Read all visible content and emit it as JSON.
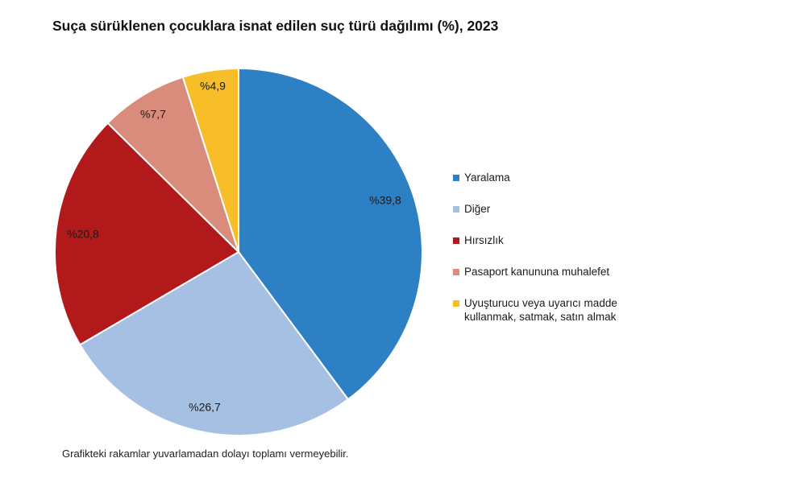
{
  "chart_data": {
    "type": "pie",
    "title": "Suça sürüklenen çocuklara isnat edilen suç türü dağılımı (%), 2023",
    "slices": [
      {
        "name": "Yaralama",
        "value": 39.8,
        "label": "%39,8",
        "color": "#2E80C4"
      },
      {
        "name": "Diğer",
        "value": 26.7,
        "label": "%26,7",
        "color": "#A6C0E4"
      },
      {
        "name": "Hırsızlık",
        "value": 20.8,
        "label": "%20,8",
        "color": "#B2191B"
      },
      {
        "name": "Pasaport kanununa muhalefet",
        "value": 7.7,
        "label": "%7,7",
        "color": "#D98C7B"
      },
      {
        "name": "Uyuşturucu veya uyarıcı madde kullanmak, satmak, satın almak",
        "value": 4.9,
        "label": "%4,9",
        "color": "#F7BE2A"
      }
    ],
    "start_angle_deg": 0,
    "direction": "clockwise",
    "legend_position": "right"
  },
  "note": "Grafikteki rakamlar yuvarlamadan dolayı toplamı vermeyebilir."
}
